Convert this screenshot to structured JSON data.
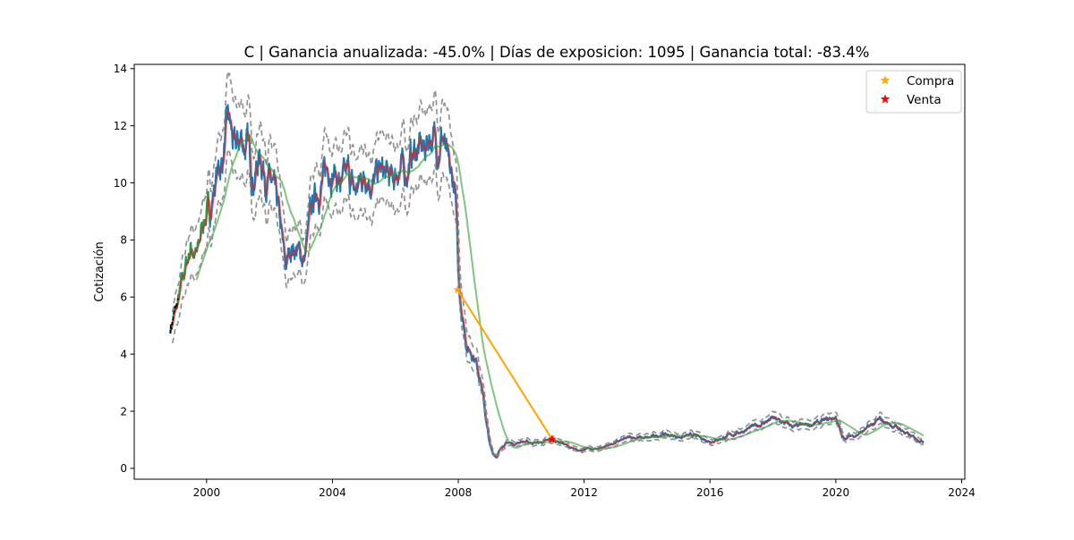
{
  "chart_data": {
    "type": "line",
    "title": "C | Ganancia anualizada: -45.0% | Días de exposicion:   1095 | Ganancia total: -83.4%",
    "xlabel": "",
    "ylabel": "Cotización",
    "xlim": [
      1997.7,
      2024.1
    ],
    "ylim": [
      -0.38,
      14.15
    ],
    "xticks": [
      2000,
      2004,
      2008,
      2012,
      2016,
      2020,
      2024
    ],
    "yticks": [
      0,
      2,
      4,
      6,
      8,
      10,
      12,
      14
    ],
    "legend_position": "top-right",
    "legend": [
      {
        "label": "Compra",
        "marker": "star",
        "color": "#ffa500"
      },
      {
        "label": "Venta",
        "marker": "star",
        "color": "#ff0000"
      }
    ],
    "price_anchors": {
      "x": [
        1998.85,
        1999.1,
        1999.3,
        1999.5,
        1999.7,
        1999.9,
        2000.1,
        2000.3,
        2000.5,
        2000.7,
        2000.9,
        2001.1,
        2001.3,
        2001.5,
        2001.7,
        2001.9,
        2002.1,
        2002.3,
        2002.5,
        2002.7,
        2002.9,
        2003.1,
        2003.3,
        2003.5,
        2003.7,
        2003.9,
        2004.1,
        2004.3,
        2004.5,
        2004.7,
        2004.9,
        2005.1,
        2005.3,
        2005.5,
        2005.7,
        2005.9,
        2006.1,
        2006.3,
        2006.5,
        2006.7,
        2006.9,
        2007.1,
        2007.3,
        2007.5,
        2007.7,
        2007.9,
        2008.0,
        2008.1,
        2008.2,
        2008.3,
        2008.5,
        2008.7,
        2008.9,
        2009.0,
        2009.1,
        2009.2,
        2009.4,
        2009.6,
        2009.8,
        2010.0,
        2010.3,
        2010.6,
        2011.0,
        2011.3,
        2011.6,
        2011.8,
        2012.0,
        2012.3,
        2012.6,
        2013.0,
        2013.5,
        2014.0,
        2014.5,
        2015.0,
        2015.5,
        2016.0,
        2016.2,
        2016.5,
        2017.0,
        2017.5,
        2018.0,
        2018.3,
        2018.7,
        2019.0,
        2019.5,
        2020.0,
        2020.2,
        2020.4,
        2020.7,
        2021.0,
        2021.4,
        2021.7,
        2022.0,
        2022.4,
        2022.8
      ],
      "y": [
        4.9,
        5.8,
        6.9,
        7.8,
        7.4,
        8.8,
        9.0,
        10.2,
        10.8,
        12.2,
        11.0,
        11.6,
        11.2,
        10.2,
        11.0,
        10.2,
        9.8,
        8.8,
        7.0,
        7.8,
        7.6,
        7.3,
        8.8,
        9.8,
        10.0,
        10.7,
        10.3,
        9.8,
        10.3,
        9.6,
        10.1,
        10.5,
        9.9,
        10.4,
        10.2,
        10.0,
        10.6,
        10.3,
        10.9,
        11.2,
        11.1,
        11.8,
        11.3,
        11.7,
        10.2,
        9.8,
        6.5,
        5.7,
        4.8,
        4.2,
        4.0,
        3.2,
        1.5,
        0.8,
        0.5,
        0.4,
        0.8,
        0.9,
        0.85,
        0.95,
        0.9,
        0.9,
        1.0,
        0.9,
        0.7,
        0.6,
        0.7,
        0.65,
        0.75,
        0.9,
        1.1,
        1.05,
        1.2,
        1.1,
        1.15,
        0.95,
        1.0,
        1.1,
        1.3,
        1.5,
        1.75,
        1.6,
        1.45,
        1.5,
        1.6,
        1.8,
        1.05,
        1.1,
        1.2,
        1.4,
        1.7,
        1.55,
        1.4,
        1.1,
        0.95
      ]
    },
    "trade": {
      "buy": {
        "label": "Compra",
        "x": 2007.98,
        "y": 6.25,
        "color": "#ffa500"
      },
      "sell": {
        "label": "Venta",
        "x": 2010.98,
        "y": 1.02,
        "color": "#ff0000"
      }
    },
    "series_colors": {
      "price": "#1f77b4",
      "short_ma": "#d62728",
      "long_ma": "#2ca02c",
      "band": "#7f7f7f",
      "trade_line": "#ffa500",
      "early_segment": "#2ca02c",
      "early_dash": "#000000"
    }
  }
}
